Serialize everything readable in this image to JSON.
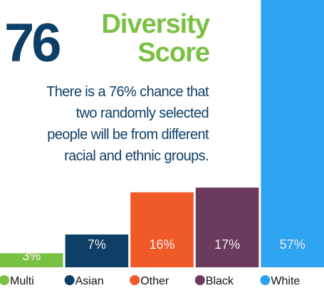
{
  "chart_data": {
    "type": "bar",
    "score": 76,
    "title_lines": [
      "Diversity",
      "Score"
    ],
    "description_lines": [
      "There is a 76% chance that",
      "two randomly selected",
      "people will be from different",
      "racial and ethnic groups."
    ],
    "categories": [
      "Multi",
      "Asian",
      "Other",
      "Black",
      "White"
    ],
    "values": [
      3,
      7,
      16,
      17,
      57
    ],
    "value_labels": [
      "3%",
      "7%",
      "16%",
      "17%",
      "57%"
    ],
    "colors": [
      "#7ac143",
      "#0e3f66",
      "#f05a28",
      "#6b3a5c",
      "#2ea3f2"
    ],
    "legend": "bottom"
  }
}
